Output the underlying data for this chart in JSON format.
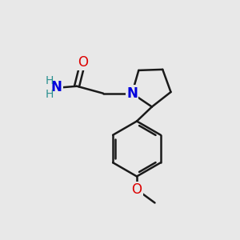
{
  "bg_color": "#e8e8e8",
  "bond_color": "#1a1a1a",
  "N_color": "#0000dd",
  "O_color": "#dd0000",
  "H_color": "#2a9090",
  "line_width": 1.8,
  "font_size_atom": 12,
  "font_size_H": 10,
  "xlim": [
    0,
    10
  ],
  "ylim": [
    0,
    10
  ]
}
